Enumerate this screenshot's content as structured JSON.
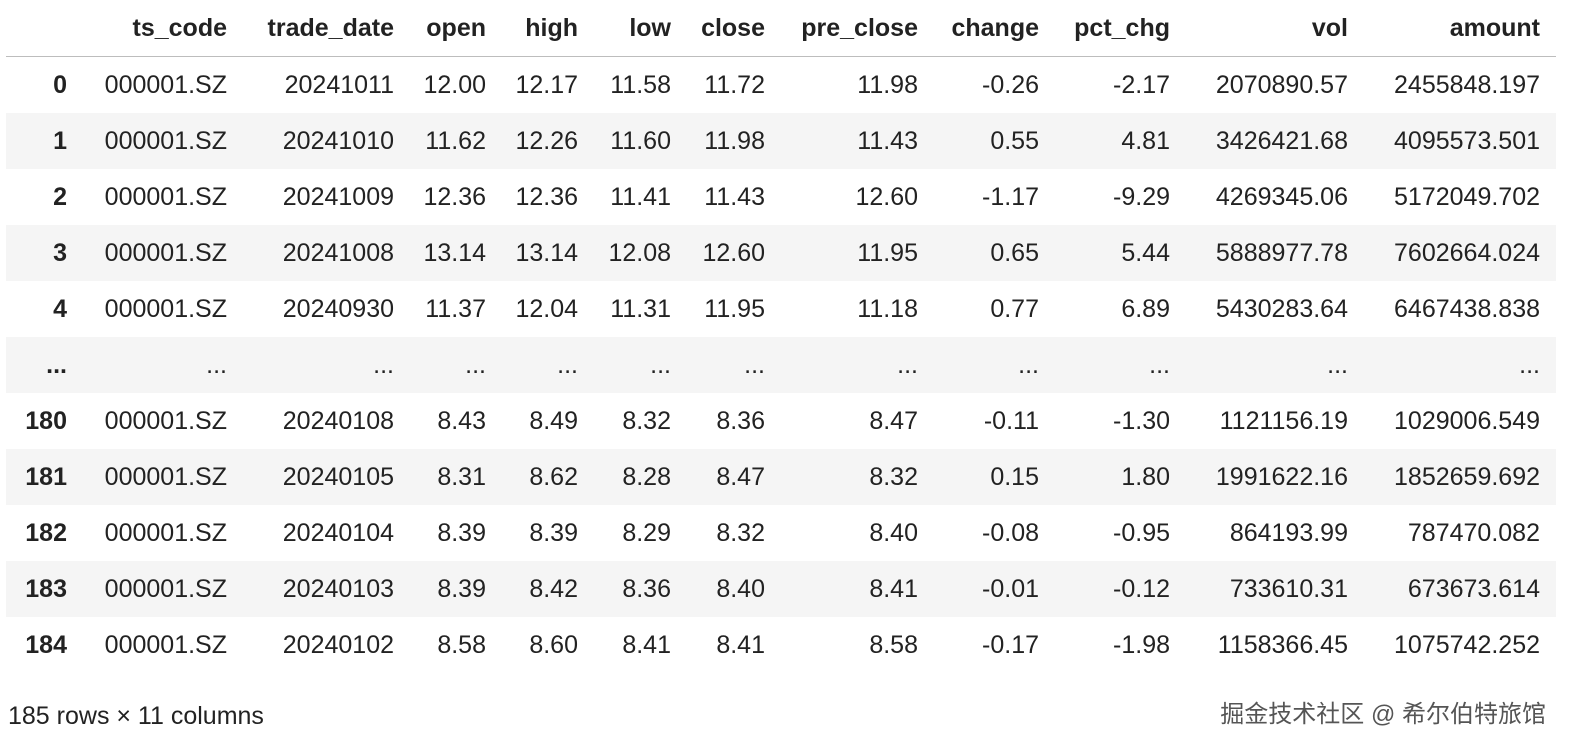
{
  "table": {
    "columns": [
      "ts_code",
      "trade_date",
      "open",
      "high",
      "low",
      "close",
      "pre_close",
      "change",
      "pct_chg",
      "vol",
      "amount"
    ],
    "rows": [
      {
        "index": "0",
        "cells": [
          "000001.SZ",
          "20241011",
          "12.00",
          "12.17",
          "11.58",
          "11.72",
          "11.98",
          "-0.26",
          "-2.17",
          "2070890.57",
          "2455848.197"
        ]
      },
      {
        "index": "1",
        "cells": [
          "000001.SZ",
          "20241010",
          "11.62",
          "12.26",
          "11.60",
          "11.98",
          "11.43",
          "0.55",
          "4.81",
          "3426421.68",
          "4095573.501"
        ]
      },
      {
        "index": "2",
        "cells": [
          "000001.SZ",
          "20241009",
          "12.36",
          "12.36",
          "11.41",
          "11.43",
          "12.60",
          "-1.17",
          "-9.29",
          "4269345.06",
          "5172049.702"
        ]
      },
      {
        "index": "3",
        "cells": [
          "000001.SZ",
          "20241008",
          "13.14",
          "13.14",
          "12.08",
          "12.60",
          "11.95",
          "0.65",
          "5.44",
          "5888977.78",
          "7602664.024"
        ]
      },
      {
        "index": "4",
        "cells": [
          "000001.SZ",
          "20240930",
          "11.37",
          "12.04",
          "11.31",
          "11.95",
          "11.18",
          "0.77",
          "6.89",
          "5430283.64",
          "6467438.838"
        ]
      },
      {
        "index": "...",
        "cells": [
          "...",
          "...",
          "...",
          "...",
          "...",
          "...",
          "...",
          "...",
          "...",
          "...",
          "..."
        ]
      },
      {
        "index": "180",
        "cells": [
          "000001.SZ",
          "20240108",
          "8.43",
          "8.49",
          "8.32",
          "8.36",
          "8.47",
          "-0.11",
          "-1.30",
          "1121156.19",
          "1029006.549"
        ]
      },
      {
        "index": "181",
        "cells": [
          "000001.SZ",
          "20240105",
          "8.31",
          "8.62",
          "8.28",
          "8.47",
          "8.32",
          "0.15",
          "1.80",
          "1991622.16",
          "1852659.692"
        ]
      },
      {
        "index": "182",
        "cells": [
          "000001.SZ",
          "20240104",
          "8.39",
          "8.39",
          "8.29",
          "8.32",
          "8.40",
          "-0.08",
          "-0.95",
          "864193.99",
          "787470.082"
        ]
      },
      {
        "index": "183",
        "cells": [
          "000001.SZ",
          "20240103",
          "8.39",
          "8.42",
          "8.36",
          "8.40",
          "8.41",
          "-0.01",
          "-0.12",
          "733610.31",
          "673673.614"
        ]
      },
      {
        "index": "184",
        "cells": [
          "000001.SZ",
          "20240102",
          "8.58",
          "8.60",
          "8.41",
          "8.41",
          "8.58",
          "-0.17",
          "-1.98",
          "1158366.45",
          "1075742.252"
        ]
      }
    ]
  },
  "footer": "185 rows × 11 columns",
  "watermark": "掘金技术社区 @ 希尔伯特旅馆"
}
